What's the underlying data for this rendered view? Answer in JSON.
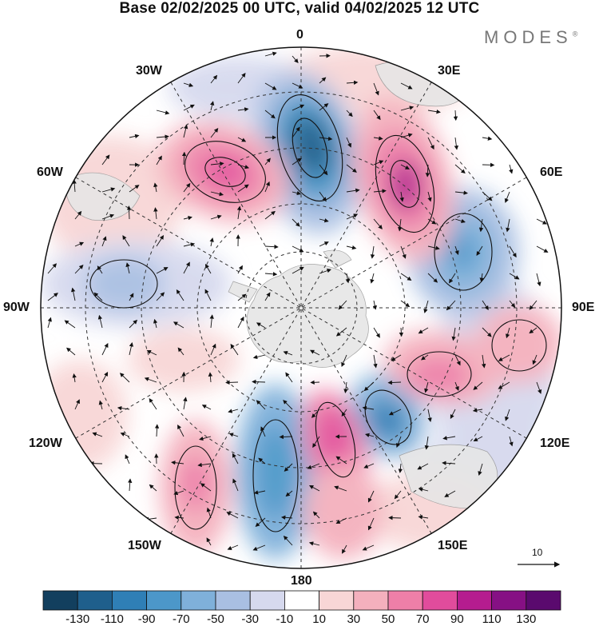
{
  "title": "Base 02/02/2025 00 UTC, valid 04/02/2025 12 UTC",
  "logo": "MODES",
  "logo_mark": "®",
  "longitude_labels": {
    "n0": "0",
    "n30e": "30E",
    "n60e": "60E",
    "n90e": "90E",
    "n120e": "120E",
    "n150e": "150E",
    "n180": "180",
    "n150w": "150W",
    "n120w": "120W",
    "n90w": "90W",
    "n60w": "60W",
    "n30w": "30W"
  },
  "reference_vector": "10",
  "colorbar": {
    "ticks": [
      "-130",
      "-110",
      "-90",
      "-70",
      "-50",
      "-30",
      "-10",
      "10",
      "30",
      "50",
      "70",
      "90",
      "110",
      "130"
    ],
    "colors": [
      "#123f5e",
      "#1f5f8c",
      "#2f7fb6",
      "#4c97c9",
      "#7fb0da",
      "#a9bfe2",
      "#d6d9ee",
      "#ffffff",
      "#f8d6d6",
      "#f4b0bd",
      "#ee7fa8",
      "#e14c9c",
      "#b51c8f",
      "#861084",
      "#5a0a6e"
    ]
  },
  "colors": {
    "land": "#e6e6e6",
    "negative": "#3a80b8",
    "positive": "#e0559e"
  }
}
